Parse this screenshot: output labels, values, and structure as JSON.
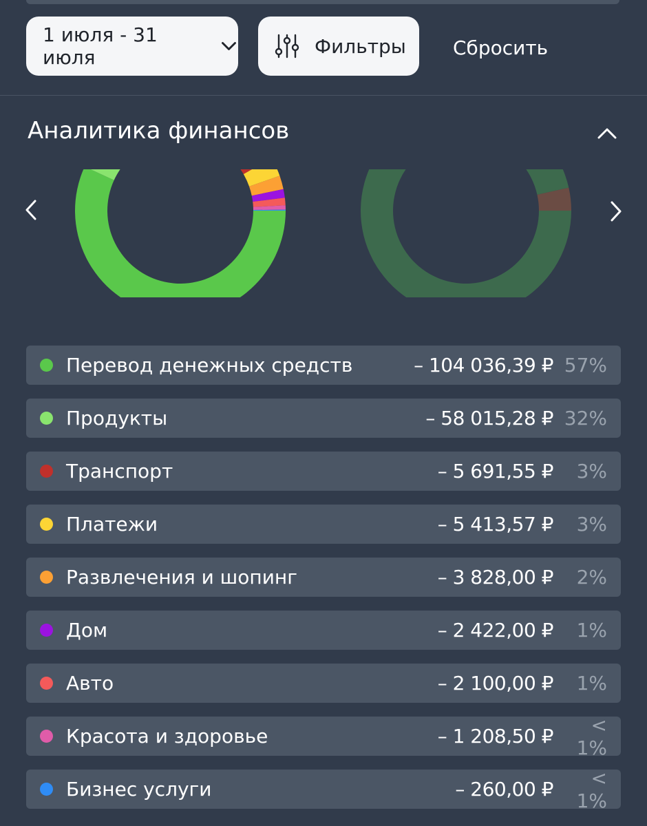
{
  "toolbar": {
    "date_range": "1 июля - 31 июля",
    "filters_label": "Фильтры",
    "reset_label": "Сбросить"
  },
  "section": {
    "title": "Аналитика финансов"
  },
  "chart_data": [
    {
      "type": "pie",
      "donut": true,
      "categories": [
        "Перевод денежных средств",
        "Продукты",
        "Транспорт",
        "Платежи",
        "Развлечения и шопинг",
        "Дом",
        "Авто",
        "Красота и здоровье",
        "Бизнес услуги"
      ],
      "values": [
        104036.39,
        58015.28,
        5691.55,
        5413.57,
        3828.0,
        2422.0,
        2100.0,
        1208.5,
        260.0
      ],
      "colors": [
        "#5ac84b",
        "#8ae46e",
        "#c0302b",
        "#fcd535",
        "#fca034",
        "#9b13e0",
        "#f45a5a",
        "#e05ca9",
        "#2f8cf5"
      ]
    },
    {
      "type": "pie",
      "donut": true,
      "values": [
        96.5,
        3.5
      ],
      "colors": [
        "#3d6a4d",
        "#6b4c44"
      ]
    }
  ],
  "categories": [
    {
      "name": "Перевод денежных средств",
      "amount": "– 104 036,39 ₽",
      "percent": "57%",
      "color": "#5ac84b"
    },
    {
      "name": "Продукты",
      "amount": "– 58 015,28 ₽",
      "percent": "32%",
      "color": "#8ae46e"
    },
    {
      "name": "Транспорт",
      "amount": "– 5 691,55 ₽",
      "percent": "3%",
      "color": "#c0302b"
    },
    {
      "name": "Платежи",
      "amount": "– 5 413,57 ₽",
      "percent": "3%",
      "color": "#fcd535"
    },
    {
      "name": "Развлечения и шопинг",
      "amount": "– 3 828,00 ₽",
      "percent": "2%",
      "color": "#fca034"
    },
    {
      "name": "Дом",
      "amount": "– 2 422,00 ₽",
      "percent": "1%",
      "color": "#9b13e0"
    },
    {
      "name": "Авто",
      "amount": "– 2 100,00 ₽",
      "percent": "1%",
      "color": "#f45a5a"
    },
    {
      "name": "Красота и здоровье",
      "amount": "– 1 208,50 ₽",
      "percent": "< 1%",
      "color": "#e05ca9"
    },
    {
      "name": "Бизнес услуги",
      "amount": "– 260,00 ₽",
      "percent": "< 1%",
      "color": "#2f8cf5"
    }
  ],
  "icons": {
    "date_dropdown": "chevron-down-icon",
    "filters": "sliders-icon",
    "collapse": "chevron-up-icon",
    "prev": "chevron-left-icon",
    "next": "chevron-right-icon"
  }
}
